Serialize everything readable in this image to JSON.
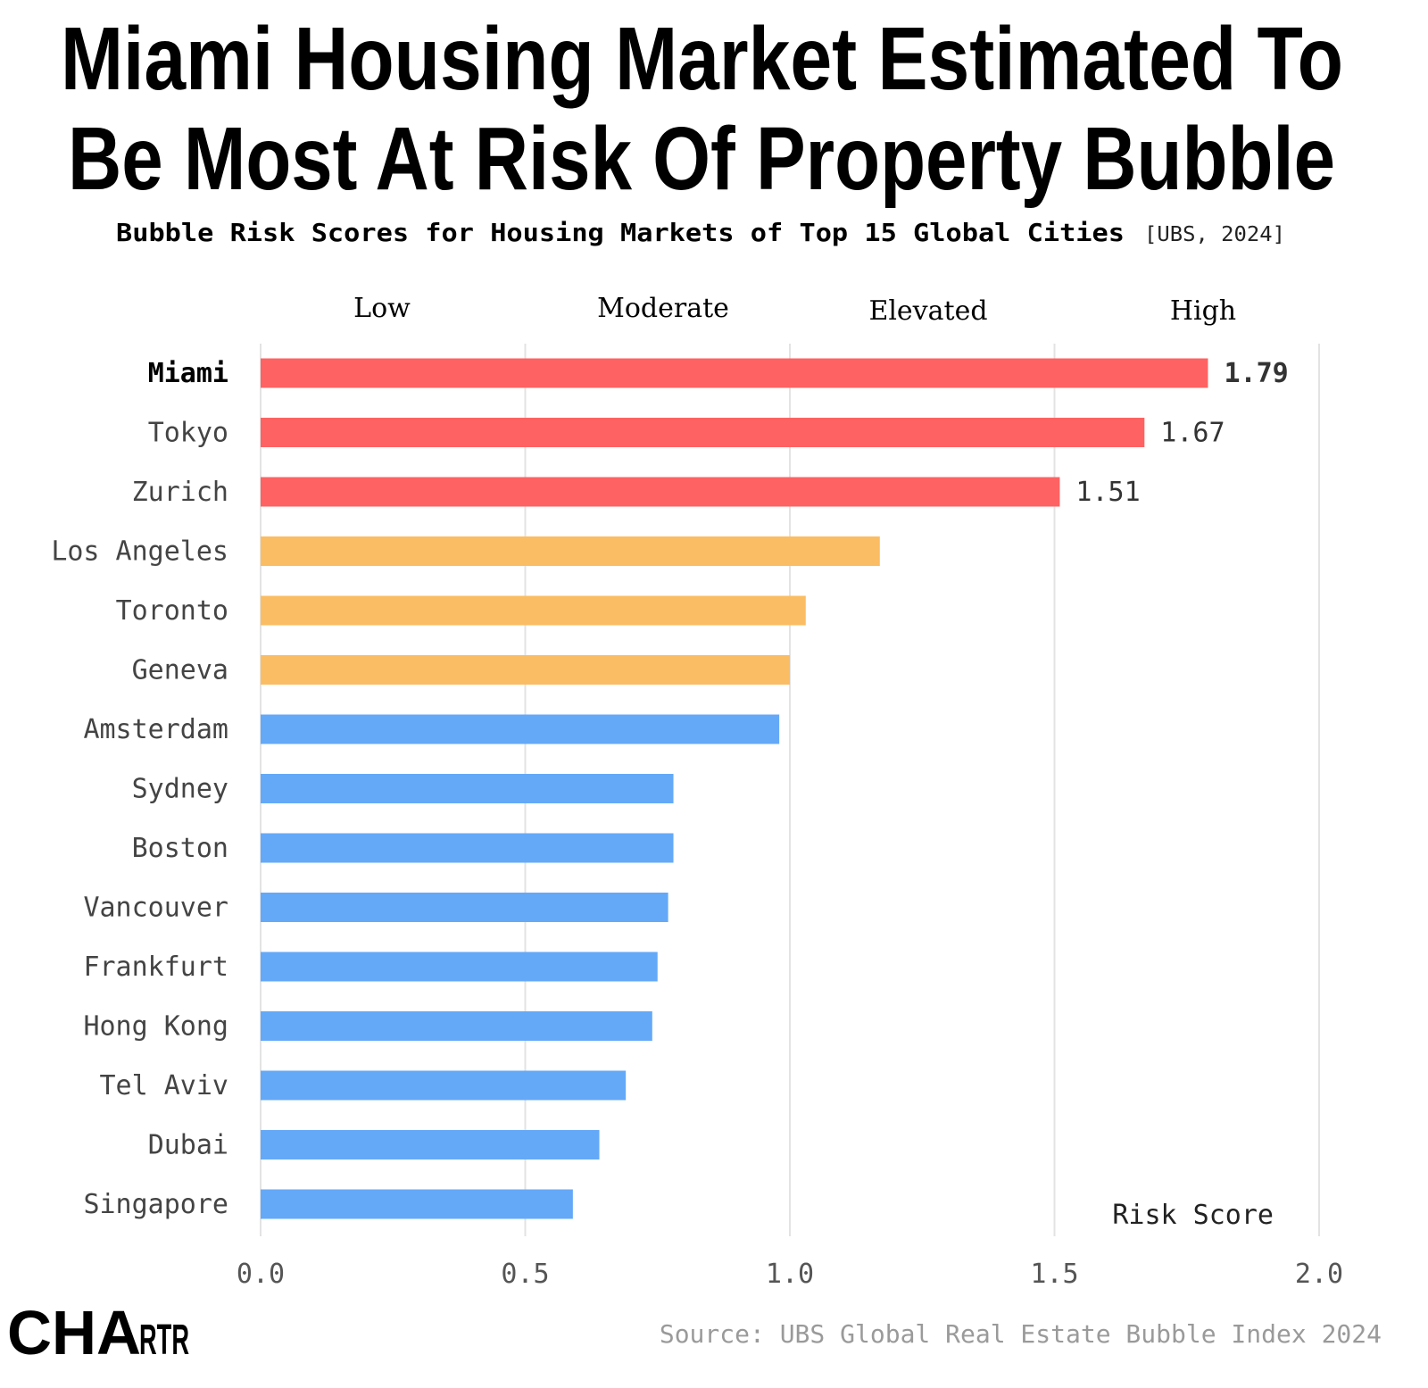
{
  "title_lines": [
    "Miami Housing Market Estimated To",
    "Be Most At Risk Of Property Bubble"
  ],
  "subtitle": "Bubble Risk Scores for Housing Markets of Top 15 Global Cities",
  "subtitle_source": "[UBS, 2024]",
  "risk_bands": [
    "Low",
    "Moderate",
    "Elevated",
    "High"
  ],
  "logo": "CHARTR",
  "source": "Source: UBS Global Real Estate Bubble Index 2024",
  "colors": {
    "high": "#ff6262",
    "elevated": "#fbbd63",
    "moderate": "#64a9f8"
  },
  "chart_data": {
    "type": "bar",
    "orientation": "horizontal",
    "xlabel": "Risk Score",
    "xlim": [
      0,
      2.0
    ],
    "x_ticks": [
      "0.0",
      "0.5",
      "1.0",
      "1.5",
      "2.0"
    ],
    "grid": true,
    "categories": [
      "Miami",
      "Tokyo",
      "Zurich",
      "Los Angeles",
      "Toronto",
      "Geneva",
      "Amsterdam",
      "Sydney",
      "Boston",
      "Vancouver",
      "Frankfurt",
      "Hong Kong",
      "Tel Aviv",
      "Dubai",
      "Singapore"
    ],
    "values": [
      1.79,
      1.67,
      1.51,
      1.17,
      1.03,
      1.0,
      0.98,
      0.78,
      0.78,
      0.77,
      0.75,
      0.74,
      0.69,
      0.64,
      0.59
    ],
    "bands": [
      "high",
      "high",
      "high",
      "elevated",
      "elevated",
      "elevated",
      "moderate",
      "moderate",
      "moderate",
      "moderate",
      "moderate",
      "moderate",
      "moderate",
      "moderate",
      "moderate"
    ],
    "data_labels": [
      "1.79",
      "1.67",
      "1.51",
      "",
      "",
      "",
      "",
      "",
      "",
      "",
      "",
      "",
      "",
      "",
      ""
    ],
    "highlight": "Miami"
  }
}
